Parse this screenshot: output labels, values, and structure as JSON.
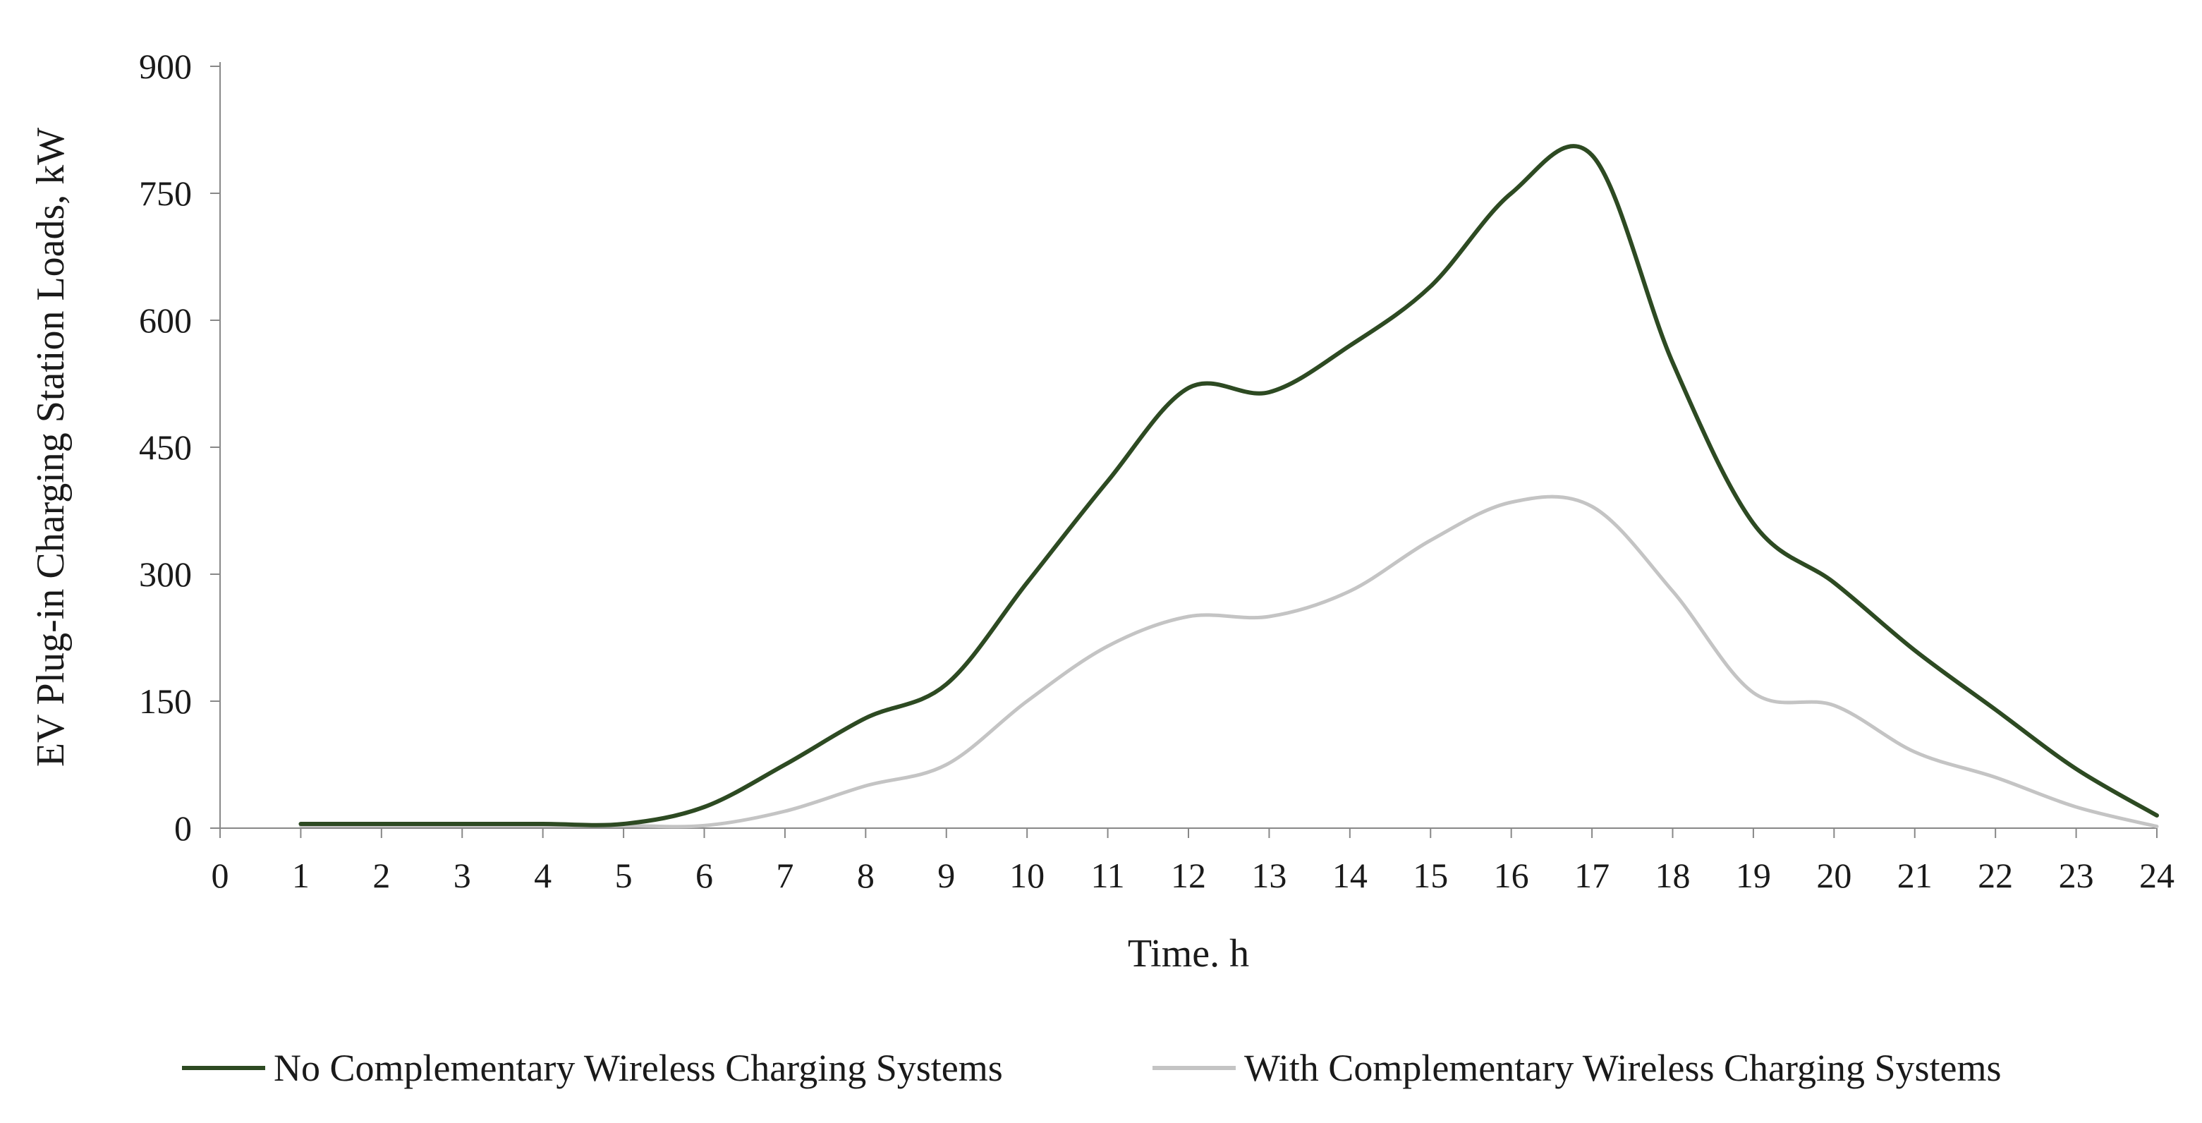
{
  "chart_data": {
    "type": "line",
    "xlabel": "Time. h",
    "ylabel": "EV Plug-in Charging Station Loads, kW",
    "xlim": [
      0,
      24
    ],
    "ylim": [
      0,
      900
    ],
    "xticks": [
      0,
      1,
      2,
      3,
      4,
      5,
      6,
      7,
      8,
      9,
      10,
      11,
      12,
      13,
      14,
      15,
      16,
      17,
      18,
      19,
      20,
      21,
      22,
      23,
      24
    ],
    "yticks": [
      0,
      150,
      300,
      450,
      600,
      750,
      900
    ],
    "grid": false,
    "legend_position": "bottom",
    "x": [
      1,
      2,
      3,
      4,
      5,
      6,
      7,
      8,
      9,
      10,
      11,
      12,
      13,
      14,
      15,
      16,
      17,
      18,
      19,
      20,
      21,
      22,
      23,
      24
    ],
    "series": [
      {
        "name": "No Complementary Wireless Charging Systems",
        "color": "#2d4a22",
        "values": [
          5,
          5,
          5,
          5,
          5,
          25,
          75,
          130,
          170,
          290,
          410,
          520,
          515,
          570,
          640,
          750,
          795,
          550,
          360,
          290,
          210,
          140,
          70,
          15
        ]
      },
      {
        "name": "With Complementary Wireless Charging Systems",
        "color": "#c4c4c4",
        "values": [
          3,
          3,
          3,
          3,
          3,
          3,
          20,
          50,
          75,
          150,
          215,
          250,
          250,
          280,
          340,
          385,
          380,
          280,
          160,
          145,
          90,
          60,
          25,
          2
        ]
      }
    ]
  }
}
